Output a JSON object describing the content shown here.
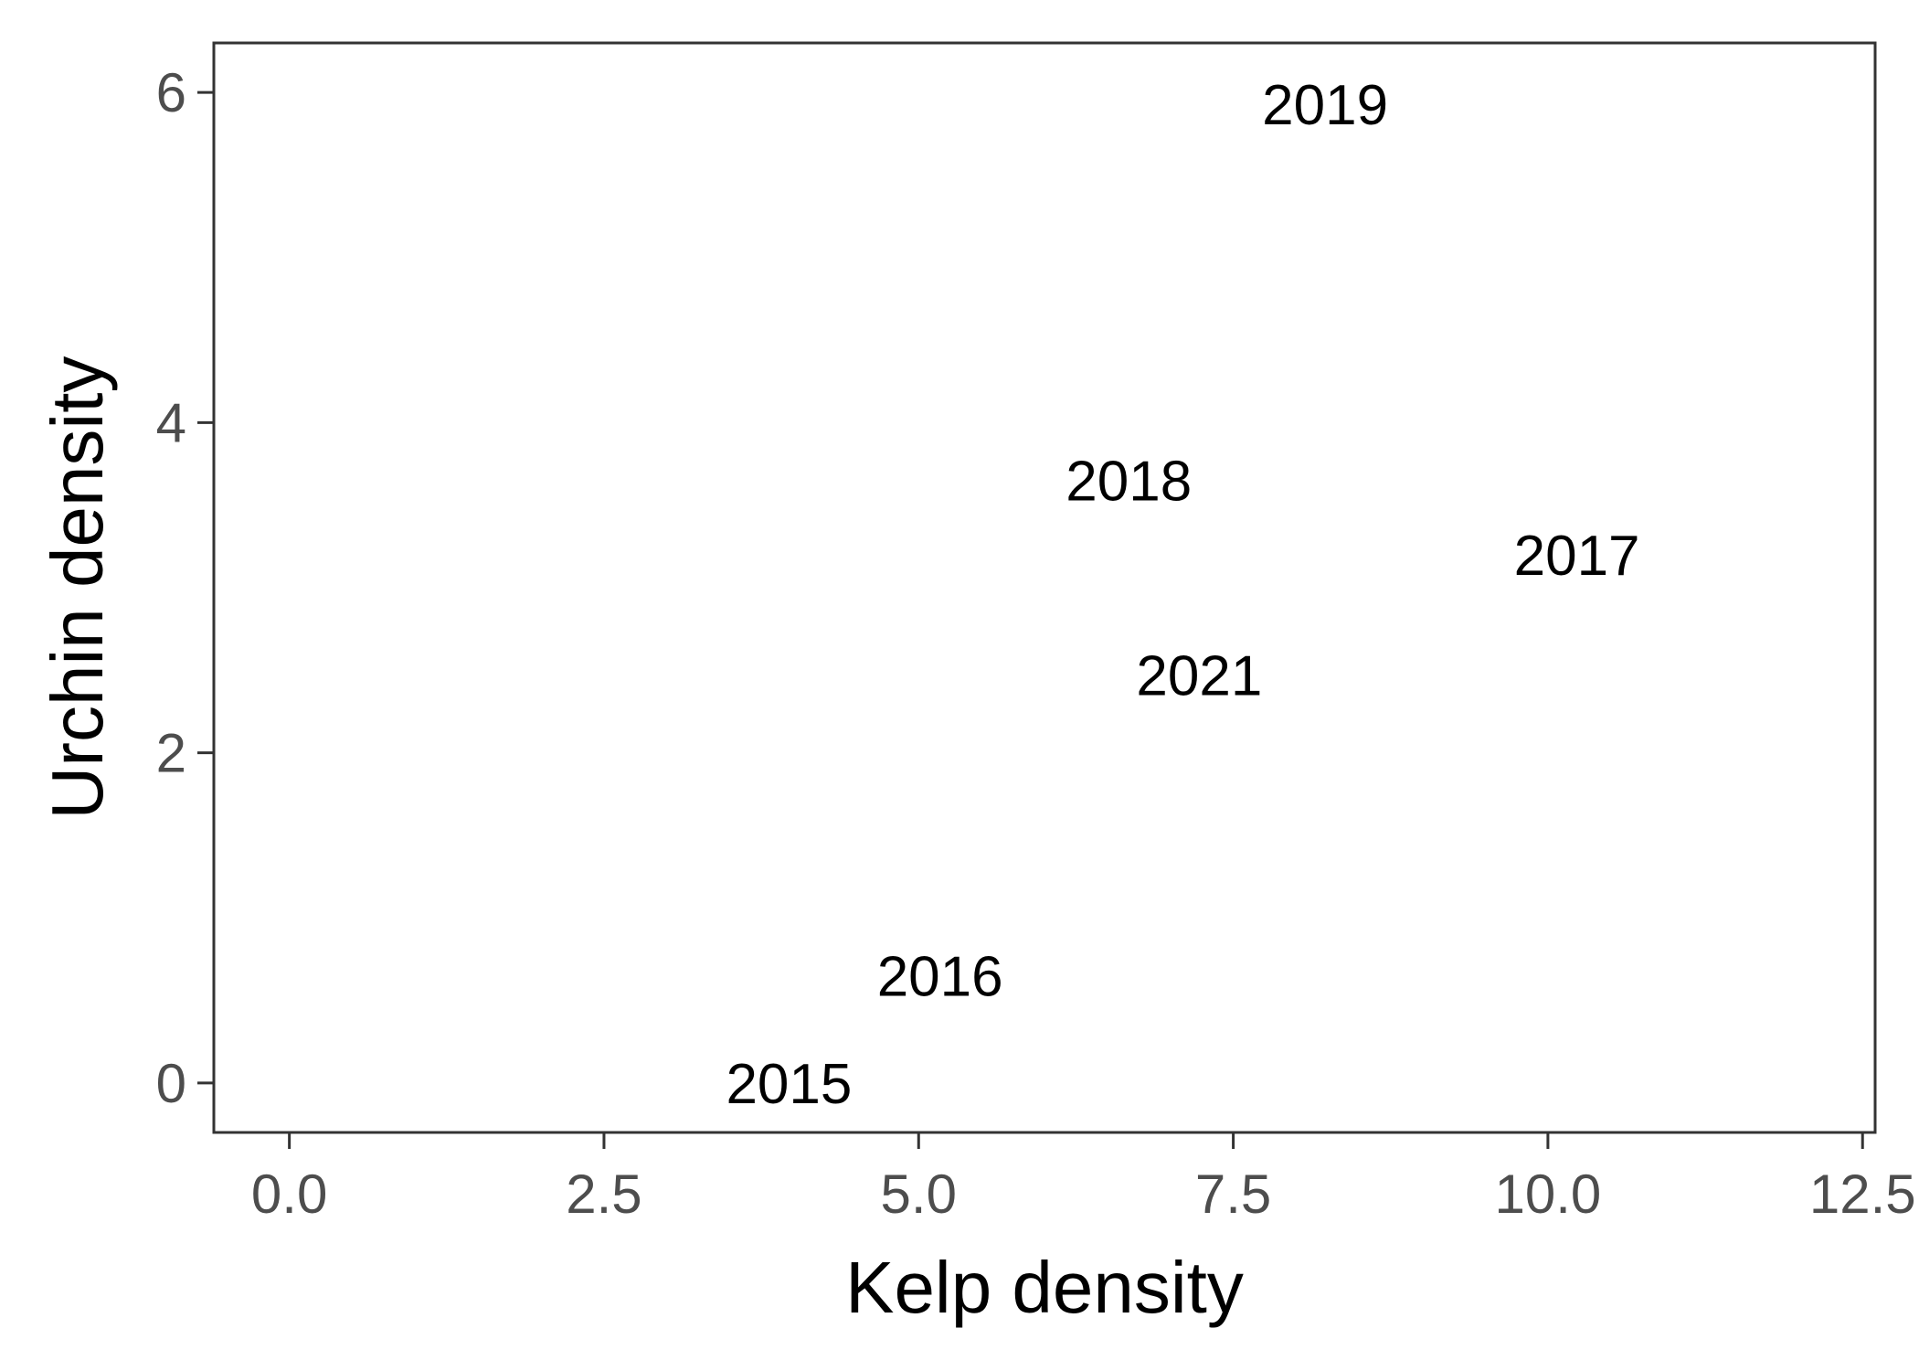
{
  "chart_data": {
    "type": "scatter",
    "title": "",
    "xlabel": "Kelp density",
    "ylabel": "Urchin density",
    "xlim": [
      -0.6,
      12.6
    ],
    "ylim": [
      -0.3,
      6.3
    ],
    "x_ticks": [
      0.0,
      2.5,
      5.0,
      7.5,
      10.0,
      12.5
    ],
    "x_tick_labels": [
      "0.0",
      "2.5",
      "5.0",
      "7.5",
      "10.0",
      "12.5"
    ],
    "y_ticks": [
      0,
      2,
      4,
      6
    ],
    "y_tick_labels": [
      "0",
      "2",
      "4",
      "6"
    ],
    "grid": false,
    "legend": "none",
    "marker": "text-label",
    "points": [
      {
        "label": "2015",
        "x": 3.97,
        "y": 0.0
      },
      {
        "label": "2016",
        "x": 5.17,
        "y": 0.65
      },
      {
        "label": "2017",
        "x": 10.23,
        "y": 3.2
      },
      {
        "label": "2018",
        "x": 6.67,
        "y": 3.65
      },
      {
        "label": "2019",
        "x": 8.23,
        "y": 5.93
      },
      {
        "label": "2021",
        "x": 7.23,
        "y": 2.47
      }
    ],
    "colors": {
      "panel_border": "#333333",
      "tick_label": "#4d4d4d",
      "text": "#000000",
      "background": "#ffffff"
    }
  }
}
